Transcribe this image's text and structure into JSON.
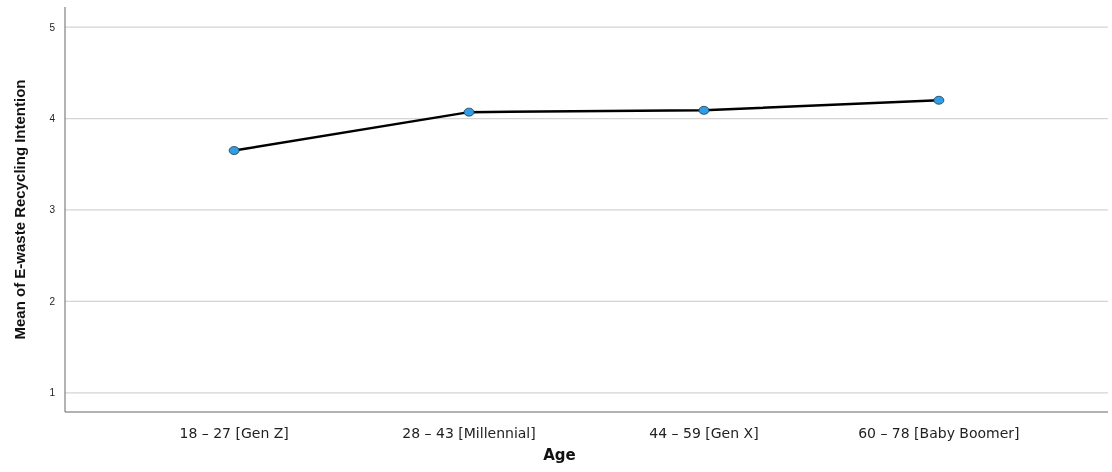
{
  "chart_data": {
    "type": "line",
    "xlabel": "Age",
    "ylabel": "Mean of E-waste Recycling Intention",
    "categories": [
      "18 – 27 [Gen Z]",
      "28 – 43 [Millennial]",
      "44 – 59 [Gen X]",
      "60 – 78 [Baby Boomer]"
    ],
    "series": [
      {
        "color": "#000000",
        "values": [
          3.65,
          4.07,
          4.09,
          4.2
        ]
      }
    ],
    "ylim": [
      0.79,
      5.22
    ],
    "yticks": [
      1,
      2,
      3,
      4,
      5
    ],
    "grid": "y",
    "marker": "circle",
    "line_style": "solid"
  }
}
